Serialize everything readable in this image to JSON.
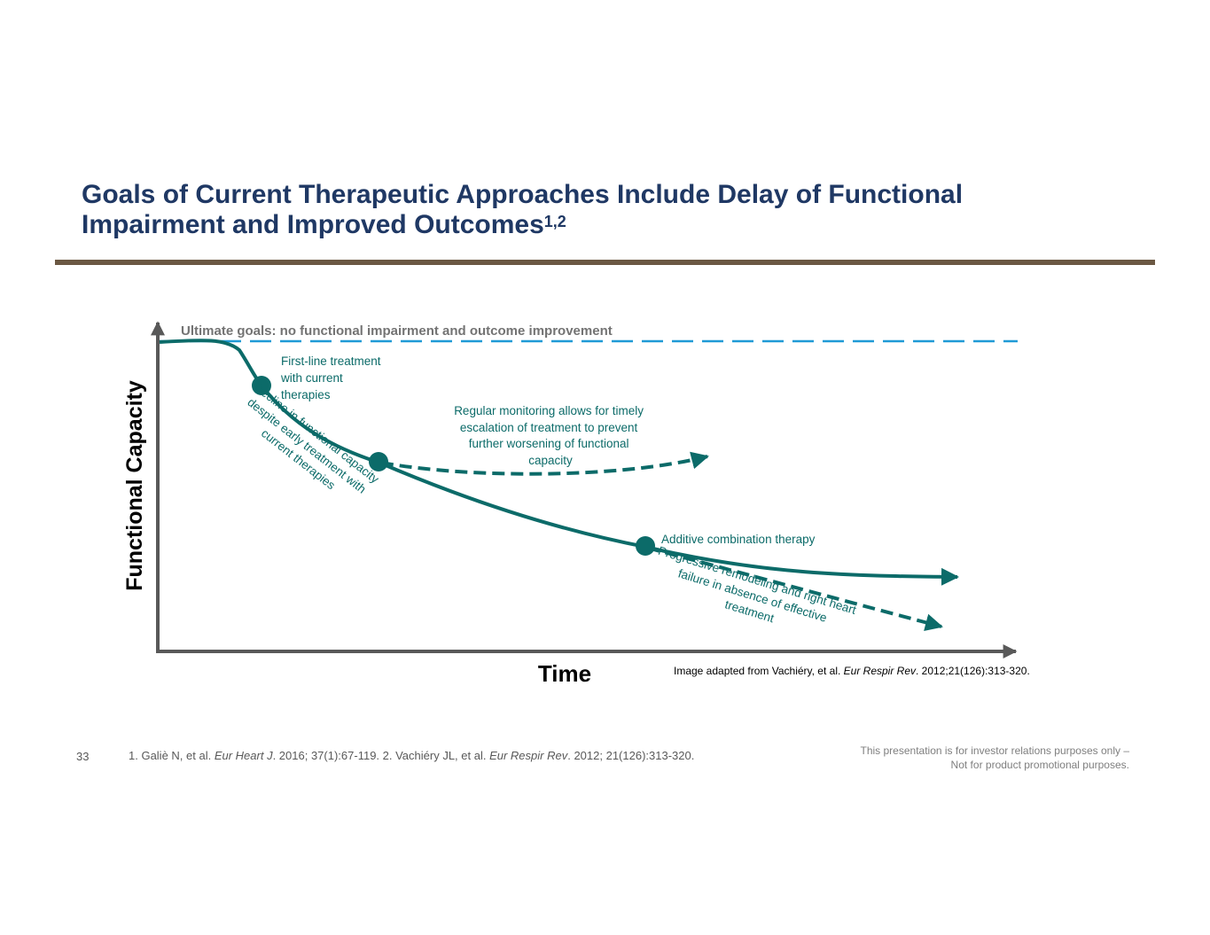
{
  "slide": {
    "title_text": "Goals of Current Therapeutic Approaches Include Delay of Functional Impairment and Improved Outcomes",
    "title_superscript": "1,2",
    "page_number": "33"
  },
  "diagram": {
    "goal_label": "Ultimate goals: no functional impairment and outcome improvement",
    "y_axis_label": "Functional Capacity",
    "x_axis_label": "Time",
    "first_line": [
      "First-line treatment",
      "with current",
      "therapies"
    ],
    "decline": [
      "Decline in functional capacity",
      "despite early treatment with",
      "current therapies"
    ],
    "monitoring": [
      "Regular monitoring allows for timely",
      "escalation of treatment to prevent",
      "further worsening of functional",
      "capacity"
    ],
    "additive": "Additive combination therapy",
    "progressive": [
      "Progressive remodeling and right heart",
      "failure in absence of effective",
      "treatment"
    ],
    "colors": {
      "curve": "#0c6b69",
      "goal_line": "#1f9ad6",
      "axis": "#595959"
    }
  },
  "credit": {
    "prefix": "Image adapted from Vachiéry, et al. ",
    "journal": "Eur Respir Rev",
    "suffix": ". 2012;21(126):313-320."
  },
  "footer": {
    "ref1_text": "1. Galiè N, et al. ",
    "ref1_journal": "Eur Heart J",
    "ref1_rest": ". 2016; 37(1):67-119. 2. Vachiéry JL, et al. ",
    "ref2_journal": "Eur Respir Rev",
    "ref2_rest": ". 2012; 21(126):313-320.",
    "disclaimer_line1": "This presentation is for investor relations purposes only –",
    "disclaimer_line2": "Not for product promotional purposes."
  }
}
